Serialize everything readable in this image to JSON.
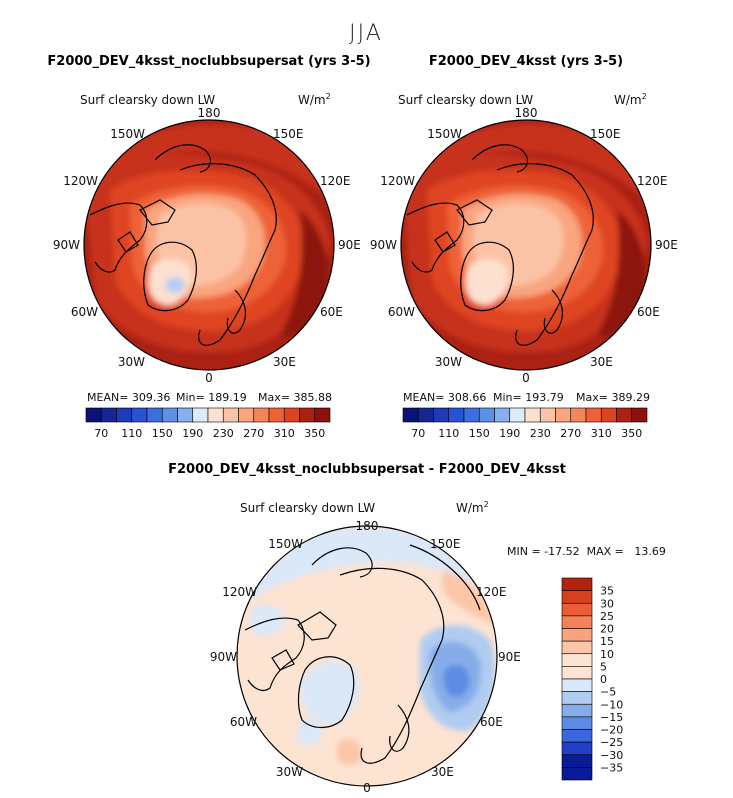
{
  "figure": {
    "season": "JJA"
  },
  "palette": {
    "warm": [
      "#fde0cf",
      "#fbc3a6",
      "#f9a57f",
      "#f5845a",
      "#ee6238",
      "#df4420",
      "#c7311b",
      "#ab2114",
      "#8c120d"
    ],
    "cool": [
      "#ddebf9",
      "#b3cef2",
      "#86afeb",
      "#5f8fe6",
      "#3d6ee0",
      "#2a52d6",
      "#1e3ab8",
      "#142594",
      "#0a1276"
    ],
    "diff_pos": [
      "#fde3d2",
      "#fbc6a8",
      "#f8a47f",
      "#f4815a",
      "#ec5d36",
      "#d7401e",
      "#b2230f"
    ],
    "diff_neg": [
      "#dbe8f8",
      "#b1ccf1",
      "#86ade9",
      "#5d8ae3",
      "#3a67dc",
      "#2140c9",
      "#0b1a98"
    ],
    "coast": "#000000",
    "land_fill_light": "#f8f2ec"
  },
  "panels": [
    {
      "title": "F2000_DEV_4ksst_noclubbsupersat (yrs 3-5)",
      "variable": "Surf clearsky down LW",
      "units": "W/m",
      "units_exp": "2",
      "lon_labels": [
        "180",
        "150E",
        "120E",
        "90E",
        "60E",
        "30E",
        "0",
        "30W",
        "60W",
        "90W",
        "120W",
        "150W"
      ],
      "stats_mean": "MEAN= 309.36",
      "stats_min": "Min= 189.19",
      "stats_max": "Max= 385.88",
      "colorbar_labels": [
        "70",
        "110",
        "150",
        "190",
        "230",
        "270",
        "310",
        "350"
      ]
    },
    {
      "title": "F2000_DEV_4ksst (yrs 3-5)",
      "variable": "Surf clearsky down LW",
      "units": "W/m",
      "units_exp": "2",
      "lon_labels": [
        "180",
        "150E",
        "120E",
        "90E",
        "60E",
        "30E",
        "0",
        "30W",
        "60W",
        "90W",
        "120W",
        "150W"
      ],
      "stats_mean": "MEAN= 308.66",
      "stats_min": "Min= 193.79",
      "stats_max": "Max= 389.29",
      "colorbar_labels": [
        "70",
        "110",
        "150",
        "190",
        "230",
        "270",
        "310",
        "350"
      ]
    },
    {
      "title": "F2000_DEV_4ksst_noclubbsupersat - F2000_DEV_4ksst",
      "variable": "Surf clearsky down LW",
      "units": "W/m",
      "units_exp": "2",
      "lon_labels": [
        "180",
        "150E",
        "120E",
        "90E",
        "60E",
        "30E",
        "0",
        "30W",
        "60W",
        "90W",
        "120W",
        "150W"
      ],
      "minmax": "MIN = -17.52  MAX =   13.69",
      "colorbar_labels": [
        "35",
        "30",
        "25",
        "20",
        "15",
        "10",
        "5",
        "0",
        "−5",
        "−10",
        "−15",
        "−20",
        "−25",
        "−30",
        "−35"
      ]
    }
  ],
  "chart_data": [
    {
      "type": "heatmap",
      "projection": "north-polar-stereographic",
      "title": "F2000_DEV_4ksst_noclubbsupersat (yrs 3-5)",
      "variable": "Surf clearsky down LW",
      "units": "W/m^2",
      "mean": 309.36,
      "min": 189.19,
      "max": 385.88,
      "contour_levels": [
        70,
        90,
        110,
        130,
        150,
        170,
        190,
        210,
        230,
        250,
        270,
        290,
        310,
        330,
        350
      ],
      "colorbar_labels": [
        70,
        110,
        150,
        190,
        230,
        270,
        310,
        350
      ]
    },
    {
      "type": "heatmap",
      "projection": "north-polar-stereographic",
      "title": "F2000_DEV_4ksst (yrs 3-5)",
      "variable": "Surf clearsky down LW",
      "units": "W/m^2",
      "mean": 308.66,
      "min": 193.79,
      "max": 389.29,
      "contour_levels": [
        70,
        90,
        110,
        130,
        150,
        170,
        190,
        210,
        230,
        250,
        270,
        290,
        310,
        330,
        350
      ],
      "colorbar_labels": [
        70,
        110,
        150,
        190,
        230,
        270,
        310,
        350
      ]
    },
    {
      "type": "heatmap",
      "projection": "north-polar-stereographic",
      "title": "F2000_DEV_4ksst_noclubbsupersat - F2000_DEV_4ksst",
      "variable": "Surf clearsky down LW",
      "units": "W/m^2",
      "min": -17.52,
      "max": 13.69,
      "contour_levels": [
        -35,
        -30,
        -25,
        -20,
        -15,
        -10,
        -5,
        0,
        5,
        10,
        15,
        20,
        25,
        30,
        35
      ],
      "colorbar_labels": [
        35,
        30,
        25,
        20,
        15,
        10,
        5,
        0,
        -5,
        -10,
        -15,
        -20,
        -25,
        -30,
        -35
      ]
    }
  ]
}
